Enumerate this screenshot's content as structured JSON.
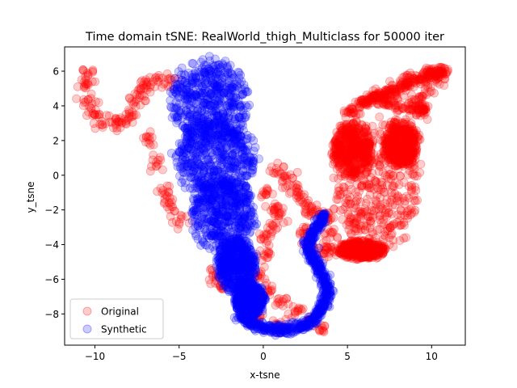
{
  "chart_data": {
    "type": "scatter",
    "title": "Time domain tSNE: RealWorld_thigh_Multiclass for 50000 iter",
    "xlabel": "x-tsne",
    "ylabel": "y_tsne",
    "xlim": [
      -11.8,
      12.0
    ],
    "ylim": [
      -9.8,
      7.4
    ],
    "xticks": [
      -10,
      -5,
      0,
      5,
      10
    ],
    "yticks": [
      -8,
      -6,
      -4,
      -2,
      0,
      2,
      4,
      6
    ],
    "xtick_labels": [
      "−10",
      "−5",
      "0",
      "5",
      "10"
    ],
    "ytick_labels": [
      "−8",
      "−6",
      "−4",
      "−2",
      "0",
      "2",
      "4",
      "6"
    ],
    "grid": false,
    "legend_position": "lower-left",
    "series": [
      {
        "name": "Original",
        "color": "#ff0000",
        "alpha": 0.2,
        "outline_points": [
          [
            -10.5,
            5.9
          ],
          [
            -10.6,
            5.2
          ],
          [
            -10.5,
            4.3
          ],
          [
            -10.1,
            3.6
          ],
          [
            -9.6,
            3.1
          ],
          [
            -8.9,
            2.9
          ],
          [
            -8.3,
            3.1
          ],
          [
            -7.9,
            3.6
          ],
          [
            -7.6,
            4.3
          ],
          [
            -7.3,
            4.9
          ],
          [
            -6.9,
            5.3
          ],
          [
            -6.3,
            5.5
          ],
          [
            -5.6,
            5.5
          ],
          [
            -6.8,
            2.0
          ],
          [
            -6.4,
            0.6
          ],
          [
            -6.0,
            -1.0
          ],
          [
            -5.6,
            -1.8
          ],
          [
            -5.0,
            -2.5
          ],
          [
            -2.9,
            -5.7
          ],
          [
            -2.6,
            -6.3
          ],
          [
            0.2,
            -1.0
          ],
          [
            0.6,
            -1.8
          ],
          [
            1.0,
            -2.4
          ],
          [
            0.6,
            -3.0
          ],
          [
            0.1,
            -3.6
          ],
          [
            0.0,
            -4.6
          ],
          [
            -0.2,
            -5.8
          ],
          [
            0.3,
            -6.6
          ],
          [
            1.0,
            -7.2
          ],
          [
            2.0,
            -7.9
          ],
          [
            2.8,
            -8.5
          ],
          [
            3.4,
            -8.8
          ],
          [
            0.9,
            -8.6
          ],
          [
            -0.4,
            -8.2
          ],
          [
            0.9,
            0.2
          ],
          [
            1.3,
            -0.1
          ],
          [
            1.8,
            -0.8
          ],
          [
            2.2,
            -1.2
          ],
          [
            2.6,
            -1.7
          ],
          [
            2.9,
            -2.1
          ],
          [
            3.4,
            -2.4
          ],
          [
            3.8,
            -2.5
          ],
          [
            4.0,
            -3.4
          ],
          [
            3.9,
            -4.2
          ],
          [
            3.6,
            -4.4
          ],
          [
            2.8,
            -3.8
          ],
          [
            2.4,
            -3.3
          ]
        ],
        "blob_ellipses": [
          {
            "cx": 6.7,
            "cy": -0.6,
            "rx": 2.9,
            "ry": 4.1
          },
          {
            "cx": 5.3,
            "cy": 1.5,
            "rx": 1.3,
            "ry": 1.8
          },
          {
            "cx": 8.2,
            "cy": 1.8,
            "rx": 1.2,
            "ry": 1.5
          },
          {
            "cx": 5.8,
            "cy": -4.3,
            "rx": 1.6,
            "ry": 0.6
          }
        ],
        "tail_points": [
          [
            5.0,
            3.5
          ],
          [
            6.0,
            4.2
          ],
          [
            7.0,
            4.6
          ],
          [
            7.8,
            4.9
          ],
          [
            8.6,
            5.3
          ],
          [
            9.4,
            5.7
          ],
          [
            10.1,
            5.9
          ],
          [
            10.8,
            6.0
          ],
          [
            9.0,
            4.2
          ],
          [
            9.6,
            3.6
          ],
          [
            7.6,
            4.1
          ],
          [
            6.5,
            4.6
          ]
        ]
      },
      {
        "name": "Synthetic",
        "color": "#0000ff",
        "alpha": 0.2,
        "blob_ellipses": [
          {
            "cx": -3.2,
            "cy": 4.3,
            "rx": 2.6,
            "ry": 2.6
          },
          {
            "cx": -2.8,
            "cy": 1.0,
            "rx": 2.7,
            "ry": 2.6
          },
          {
            "cx": -2.4,
            "cy": -2.2,
            "rx": 2.2,
            "ry": 2.4
          },
          {
            "cx": -1.6,
            "cy": -5.2,
            "rx": 1.3,
            "ry": 1.7
          },
          {
            "cx": -0.8,
            "cy": -7.2,
            "rx": 1.0,
            "ry": 1.1
          }
        ],
        "curve_points": [
          [
            -1.6,
            -8.0
          ],
          [
            -0.8,
            -8.5
          ],
          [
            0.0,
            -8.8
          ],
          [
            0.8,
            -8.9
          ],
          [
            1.6,
            -8.9
          ],
          [
            2.4,
            -8.7
          ],
          [
            3.0,
            -8.3
          ],
          [
            3.4,
            -7.8
          ],
          [
            3.7,
            -7.2
          ],
          [
            3.8,
            -6.5
          ],
          [
            3.6,
            -5.8
          ],
          [
            3.2,
            -5.2
          ],
          [
            2.8,
            -4.6
          ],
          [
            2.7,
            -4.0
          ],
          [
            2.9,
            -3.4
          ],
          [
            3.3,
            -2.8
          ],
          [
            3.6,
            -2.3
          ]
        ]
      }
    ]
  }
}
